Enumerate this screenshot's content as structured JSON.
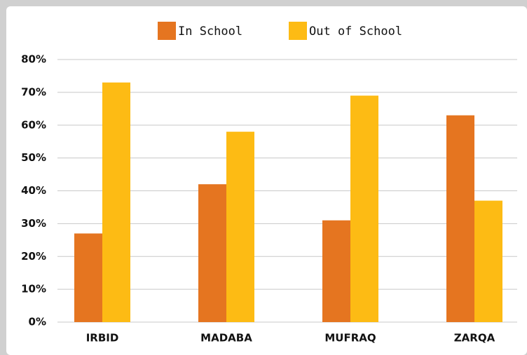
{
  "chart_data": {
    "type": "bar",
    "categories": [
      "IRBID",
      "MADABA",
      "MUFRAQ",
      "ZARQA"
    ],
    "series": [
      {
        "name": "In School",
        "color": "#e57520",
        "values": [
          27,
          42,
          31,
          63
        ]
      },
      {
        "name": "Out of School",
        "color": "#fdbb14",
        "values": [
          73,
          58,
          69,
          37
        ]
      }
    ],
    "ylim": [
      0,
      80
    ],
    "yticks": [
      {
        "value": 0,
        "label": "0%"
      },
      {
        "value": 10,
        "label": "10%"
      },
      {
        "value": 20,
        "label": "20%"
      },
      {
        "value": 30,
        "label": "30%"
      },
      {
        "value": 40,
        "label": "40%"
      },
      {
        "value": 50,
        "label": "50%"
      },
      {
        "value": 60,
        "label": "60%"
      },
      {
        "value": 70,
        "label": "70%"
      },
      {
        "value": 80,
        "label": "80%"
      }
    ],
    "grid": true,
    "legend": "top"
  }
}
